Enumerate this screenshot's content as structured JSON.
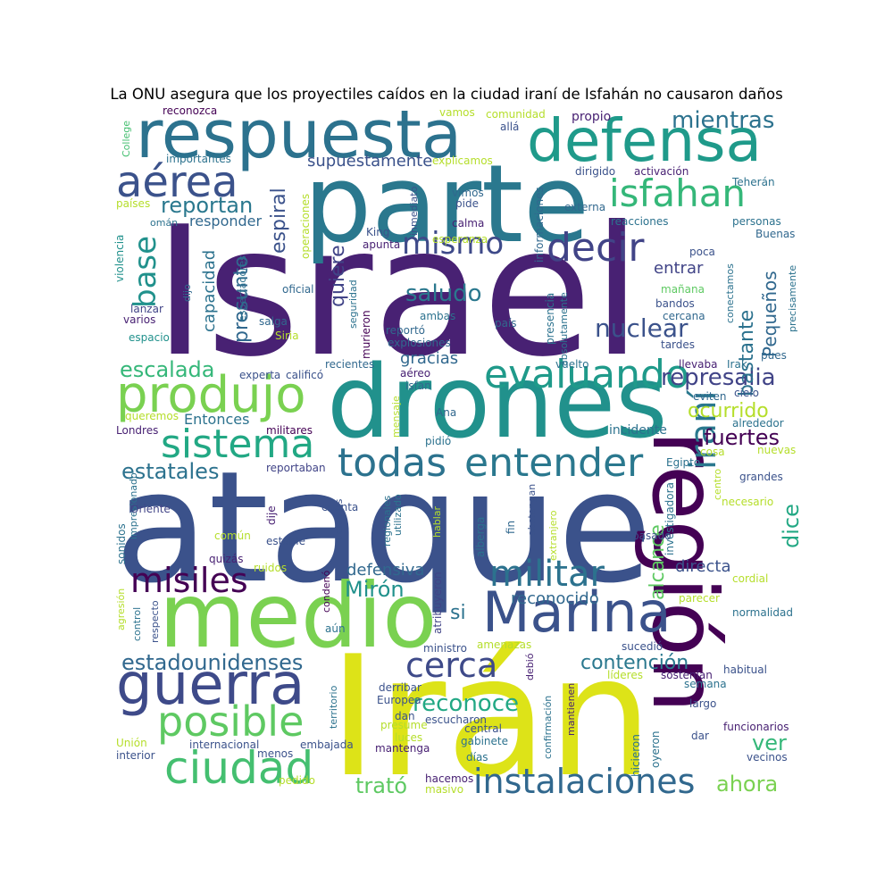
{
  "title": "La ONU asegura que los proyectiles caídos en la ciudad iraní de Isfahán no causaron daños",
  "words": [
    {
      "text": "Israel",
      "color": "#482173"
    },
    {
      "text": "ataque",
      "color": "#3b528b"
    },
    {
      "text": "Irán",
      "color": "#dde318"
    },
    {
      "text": "parte",
      "color": "#2a788e"
    },
    {
      "text": "drones",
      "color": "#21918c"
    },
    {
      "text": "medio",
      "color": "#7ad151"
    },
    {
      "text": "región",
      "color": "#440154"
    },
    {
      "text": "respuesta",
      "color": "#2c728e"
    },
    {
      "text": "defensa",
      "color": "#1f9a8a"
    },
    {
      "text": "guerra",
      "color": "#3e4a89"
    },
    {
      "text": "Marina",
      "color": "#3b528b"
    },
    {
      "text": "produjo",
      "color": "#7ad151"
    },
    {
      "text": "sistema",
      "color": "#22a884"
    },
    {
      "text": "entender",
      "color": "#2a788e"
    },
    {
      "text": "todas",
      "color": "#2c728e"
    },
    {
      "text": "evaluando",
      "color": "#1f9a8a"
    },
    {
      "text": "ciudad",
      "color": "#44bf70"
    },
    {
      "text": "posible",
      "color": "#5ec962"
    },
    {
      "text": "instalaciones",
      "color": "#31688e"
    },
    {
      "text": "isfahan",
      "color": "#35b779"
    },
    {
      "text": "aérea",
      "color": "#3b528b"
    },
    {
      "text": "decir",
      "color": "#414487"
    },
    {
      "text": "mismo",
      "color": "#3e4a89"
    },
    {
      "text": "militar",
      "color": "#2c728e"
    },
    {
      "text": "misiles",
      "color": "#440154"
    },
    {
      "text": "cerca",
      "color": "#3e4a89"
    },
    {
      "text": "iraní",
      "color": "#2a788e"
    },
    {
      "text": "estadounidenses",
      "color": "#31688e"
    },
    {
      "text": "base",
      "color": "#21918c"
    },
    {
      "text": "mientras",
      "color": "#2c728e"
    },
    {
      "text": "reportan",
      "color": "#2a788e"
    },
    {
      "text": "nuclear",
      "color": "#3b528b"
    },
    {
      "text": "represalia",
      "color": "#414487"
    },
    {
      "text": "fuertes",
      "color": "#440154"
    },
    {
      "text": "ocurrido",
      "color": "#b5de2b"
    },
    {
      "text": "escalada",
      "color": "#35b779"
    },
    {
      "text": "estatales",
      "color": "#2c728e"
    },
    {
      "text": "saludo",
      "color": "#2a788e"
    },
    {
      "text": "Mirón",
      "color": "#21918c"
    },
    {
      "text": "contención",
      "color": "#2a788e"
    },
    {
      "text": "reconoce",
      "color": "#22a884"
    },
    {
      "text": "ver",
      "color": "#35b779"
    },
    {
      "text": "ahora",
      "color": "#7ad151"
    },
    {
      "text": "tratό",
      "color": "#5ec962"
    },
    {
      "text": "si",
      "color": "#2c728e"
    },
    {
      "text": "alcance",
      "color": "#5ec962"
    },
    {
      "text": "dice",
      "color": "#22a884"
    },
    {
      "text": "bastante",
      "color": "#2c728e"
    },
    {
      "text": "Pequeños",
      "color": "#31688e"
    },
    {
      "text": "espiral",
      "color": "#3b528b"
    },
    {
      "text": "quiere",
      "color": "#414487"
    },
    {
      "text": "presunto",
      "color": "#31688e"
    },
    {
      "text": "capacidad",
      "color": "#2c728e"
    },
    {
      "text": "supuestamente",
      "color": "#3b528b"
    },
    {
      "text": "responder",
      "color": "#31688e"
    },
    {
      "text": "defensiva",
      "color": "#31688e"
    },
    {
      "text": "directa",
      "color": "#3b528b"
    },
    {
      "text": "entrar",
      "color": "#414487"
    },
    {
      "text": "gracias",
      "color": "#31688e"
    },
    {
      "text": "Entonces",
      "color": "#2c728e"
    },
    {
      "text": "reconocido",
      "color": "#31688e"
    },
    {
      "text": "incidente",
      "color": "#2c728e"
    },
    {
      "text": "reconozca",
      "color": "#440154"
    },
    {
      "text": "vamos",
      "color": "#b5de2b"
    },
    {
      "text": "comunidad",
      "color": "#b5de2b"
    },
    {
      "text": "propio",
      "color": "#482173"
    },
    {
      "text": "allá",
      "color": "#3b528b"
    },
    {
      "text": "College",
      "color": "#44bf70"
    },
    {
      "text": "importantes",
      "color": "#2c728e"
    },
    {
      "text": "explicamos",
      "color": "#b5de2b"
    },
    {
      "text": "dirigido",
      "color": "#3b528b"
    },
    {
      "text": "activación",
      "color": "#482173"
    },
    {
      "text": "Teherán",
      "color": "#2c728e"
    },
    {
      "text": "países",
      "color": "#b5de2b"
    },
    {
      "text": "omán",
      "color": "#2c728e"
    },
    {
      "text": "vimos",
      "color": "#31688e"
    },
    {
      "text": "pide",
      "color": "#3b528b"
    },
    {
      "text": "calma",
      "color": "#482173"
    },
    {
      "text": "externa",
      "color": "#31688e"
    },
    {
      "text": "reacciones",
      "color": "#2c728e"
    },
    {
      "text": "personas",
      "color": "#2c728e"
    },
    {
      "text": "Buenas",
      "color": "#31688e"
    },
    {
      "text": "King",
      "color": "#3b528b"
    },
    {
      "text": "apunta",
      "color": "#482173"
    },
    {
      "text": "esperanza",
      "color": "#b5de2b"
    },
    {
      "text": "inmediato",
      "color": "#3b528b"
    },
    {
      "text": "informaciones",
      "color": "#31688e"
    },
    {
      "text": "operaciones",
      "color": "#b5de2b"
    },
    {
      "text": "seguridad",
      "color": "#2c728e"
    },
    {
      "text": "violencia",
      "color": "#21918c"
    },
    {
      "text": "espectadores",
      "color": "#2c728e"
    },
    {
      "text": "poca",
      "color": "#3b528b"
    },
    {
      "text": "oficial",
      "color": "#31688e"
    },
    {
      "text": "mañana",
      "color": "#5ec962"
    },
    {
      "text": "bandos",
      "color": "#3b528b"
    },
    {
      "text": "dijo",
      "color": "#31688e"
    },
    {
      "text": "lanzar",
      "color": "#414487"
    },
    {
      "text": "varios",
      "color": "#482173"
    },
    {
      "text": "salga",
      "color": "#31688e"
    },
    {
      "text": "ambas",
      "color": "#2c728e"
    },
    {
      "text": "país",
      "color": "#31688e"
    },
    {
      "text": "cercana",
      "color": "#31688e"
    },
    {
      "text": "conectamos",
      "color": "#2c728e"
    },
    {
      "text": "precisamente",
      "color": "#2c728e"
    },
    {
      "text": "espacio",
      "color": "#21918c"
    },
    {
      "text": "Siria",
      "color": "#b5de2b"
    },
    {
      "text": "reportó",
      "color": "#31688e"
    },
    {
      "text": "explosiones",
      "color": "#31688e"
    },
    {
      "text": "murieron",
      "color": "#440154"
    },
    {
      "text": "presencia",
      "color": "#2c728e"
    },
    {
      "text": "absolutamente",
      "color": "#2c728e"
    },
    {
      "text": "tardes",
      "color": "#3b528b"
    },
    {
      "text": "pues",
      "color": "#31688e"
    },
    {
      "text": "recientes",
      "color": "#31688e"
    },
    {
      "text": "aéreo",
      "color": "#482173"
    },
    {
      "text": "isfan",
      "color": "#31688e"
    },
    {
      "text": "vuelto",
      "color": "#2c728e"
    },
    {
      "text": "llevaba",
      "color": "#482173"
    },
    {
      "text": "Irak",
      "color": "#2c728e"
    },
    {
      "text": "experta",
      "color": "#3b528b"
    },
    {
      "text": "calificó",
      "color": "#3b528b"
    },
    {
      "text": "eviten",
      "color": "#31688e"
    },
    {
      "text": "cielo",
      "color": "#3b528b"
    },
    {
      "text": "alrededor",
      "color": "#2c728e"
    },
    {
      "text": "queremos",
      "color": "#b5de2b"
    },
    {
      "text": "Ana",
      "color": "#31688e"
    },
    {
      "text": "mensaje",
      "color": "#b5de2b"
    },
    {
      "text": "Londres",
      "color": "#482173"
    },
    {
      "text": "militares",
      "color": "#440154"
    },
    {
      "text": "pidió",
      "color": "#2c728e"
    },
    {
      "text": "nuevas",
      "color": "#b5de2b"
    },
    {
      "text": "cosa",
      "color": "#b5de2b"
    },
    {
      "text": "Egipto",
      "color": "#2c728e"
    },
    {
      "text": "reportaban",
      "color": "#414487"
    },
    {
      "text": "impresionado",
      "color": "#2c728e"
    },
    {
      "text": "Oriente",
      "color": "#414487"
    },
    {
      "text": "nucleares",
      "color": "#3b528b"
    },
    {
      "text": "regionales",
      "color": "#2c728e"
    },
    {
      "text": "utilizado",
      "color": "#2c728e"
    },
    {
      "text": "abstengan",
      "color": "#3b528b"
    },
    {
      "text": "centro",
      "color": "#b5de2b"
    },
    {
      "text": "grandes",
      "color": "#3b528b"
    },
    {
      "text": "necesario",
      "color": "#b5de2b"
    },
    {
      "text": "cuenta",
      "color": "#3b528b"
    },
    {
      "text": "extranjero",
      "color": "#b5de2b"
    },
    {
      "text": "investigadora",
      "color": "#2c728e"
    },
    {
      "text": "dije",
      "color": "#482173"
    },
    {
      "text": "hablar",
      "color": "#b5de2b"
    },
    {
      "text": "fin",
      "color": "#31688e"
    },
    {
      "text": "alberga",
      "color": "#2c728e"
    },
    {
      "text": "común",
      "color": "#b5de2b"
    },
    {
      "text": "estable",
      "color": "#3b528b"
    },
    {
      "text": "sonidos",
      "color": "#2c728e"
    },
    {
      "text": "pasado",
      "color": "#3b528b"
    },
    {
      "text": "quizás",
      "color": "#482173"
    },
    {
      "text": "ruidos",
      "color": "#b5de2b"
    },
    {
      "text": "condenó",
      "color": "#440154"
    },
    {
      "text": "atribuyeron",
      "color": "#414487"
    },
    {
      "text": "cordial",
      "color": "#b5de2b"
    },
    {
      "text": "agresión",
      "color": "#b5de2b"
    },
    {
      "text": "control",
      "color": "#2c728e"
    },
    {
      "text": "respecto",
      "color": "#3b528b"
    },
    {
      "text": "aún",
      "color": "#2c728e"
    },
    {
      "text": "parecer",
      "color": "#b5de2b"
    },
    {
      "text": "normalidad",
      "color": "#2c728e"
    },
    {
      "text": "ministro",
      "color": "#3b528b"
    },
    {
      "text": "amenazas",
      "color": "#b5de2b"
    },
    {
      "text": "sucedió",
      "color": "#3b528b"
    },
    {
      "text": "habitual",
      "color": "#3b528b"
    },
    {
      "text": "debió",
      "color": "#482173"
    },
    {
      "text": "líderes",
      "color": "#b5de2b"
    },
    {
      "text": "sostenían",
      "color": "#482173"
    },
    {
      "text": "semana",
      "color": "#2c728e"
    },
    {
      "text": "territorio",
      "color": "#2c728e"
    },
    {
      "text": "derribar",
      "color": "#3b528b"
    },
    {
      "text": "Europea",
      "color": "#3b528b"
    },
    {
      "text": "mantienen",
      "color": "#482173"
    },
    {
      "text": "confirmación",
      "color": "#2c728e"
    },
    {
      "text": "largo",
      "color": "#3b528b"
    },
    {
      "text": "funcionarios",
      "color": "#482173"
    },
    {
      "text": "dan",
      "color": "#3b528b"
    },
    {
      "text": "presume",
      "color": "#b5de2b"
    },
    {
      "text": "escucharon",
      "color": "#3b528b"
    },
    {
      "text": "central",
      "color": "#3b528b"
    },
    {
      "text": "Unión",
      "color": "#b5de2b"
    },
    {
      "text": "internacional",
      "color": "#3b528b"
    },
    {
      "text": "embajada",
      "color": "#3b528b"
    },
    {
      "text": "luces",
      "color": "#b5de2b"
    },
    {
      "text": "gabinete",
      "color": "#2c728e"
    },
    {
      "text": "hicieron",
      "color": "#2c728e"
    },
    {
      "text": "oyeron",
      "color": "#2c728e"
    },
    {
      "text": "dar",
      "color": "#3b528b"
    },
    {
      "text": "interior",
      "color": "#3b528b"
    },
    {
      "text": "menos",
      "color": "#3b528b"
    },
    {
      "text": "mantenga",
      "color": "#482173"
    },
    {
      "text": "días",
      "color": "#2c728e"
    },
    {
      "text": "vecinos",
      "color": "#3b528b"
    },
    {
      "text": "hacemos",
      "color": "#482173"
    },
    {
      "text": "pedido",
      "color": "#b5de2b"
    },
    {
      "text": "masivo",
      "color": "#b5de2b"
    }
  ]
}
